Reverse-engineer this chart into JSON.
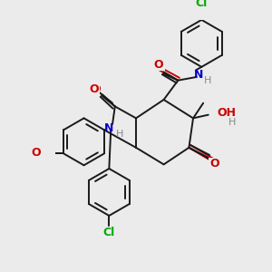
{
  "background_color": "#ebebeb",
  "bond_color": "#1a1a1a",
  "oxygen_color": "#cc0000",
  "nitrogen_color": "#0000cc",
  "chlorine_color": "#00aa00",
  "hydrogen_color": "#888888",
  "figsize": [
    3.0,
    3.0
  ],
  "dpi": 100,
  "xlim": [
    0,
    300
  ],
  "ylim": [
    0,
    300
  ]
}
